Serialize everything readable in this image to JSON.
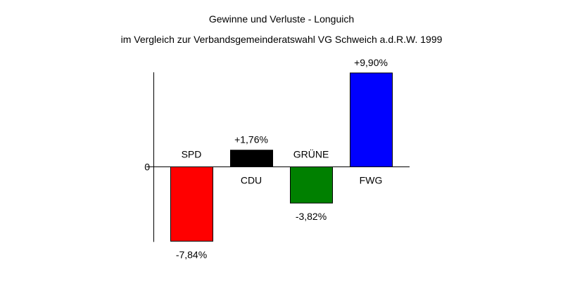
{
  "chart_data": {
    "type": "bar",
    "title": "Gewinne und Verluste - Longuich",
    "subtitle": "im Vergleich zur Verbandsgemeinderatswahl VG Schweich a.d.R.W. 1999",
    "categories": [
      "SPD",
      "CDU",
      "GRÜNE",
      "FWG"
    ],
    "values": [
      -7.84,
      1.76,
      -3.82,
      9.9
    ],
    "value_labels": [
      "-7,84%",
      "+1,76%",
      "-3,82%",
      "+9,90%"
    ],
    "colors": [
      "#ff0000",
      "#000000",
      "#008000",
      "#0000ff"
    ],
    "y_tick_labels": [
      "0"
    ],
    "xlabel": "",
    "ylabel": "",
    "unit": "%",
    "grid": false,
    "legend": "none"
  }
}
